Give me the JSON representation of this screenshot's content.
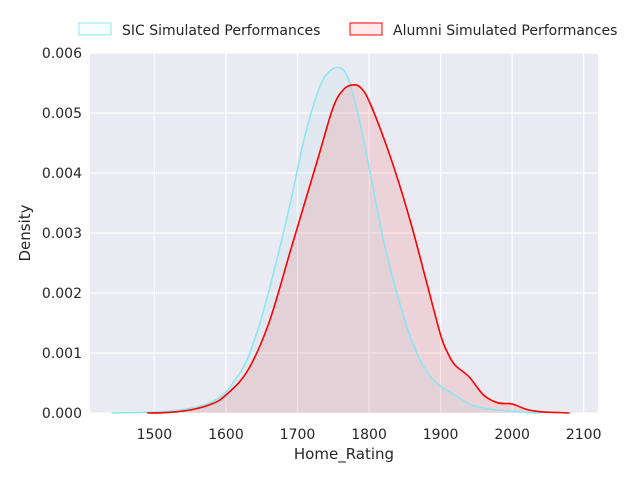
{
  "chart_data": {
    "type": "line",
    "xlabel": "Home_Rating",
    "ylabel": "Density",
    "xlim": [
      1410,
      2120
    ],
    "ylim": [
      0,
      0.006
    ],
    "x_ticks": [
      1500,
      1600,
      1700,
      1800,
      1900,
      2000,
      2100
    ],
    "x_tick_labels": [
      "1500",
      "1600",
      "1700",
      "1800",
      "1900",
      "2000",
      "2100"
    ],
    "y_ticks": [
      0,
      0.001,
      0.002,
      0.003,
      0.004,
      0.005,
      0.006
    ],
    "y_tick_labels": [
      "0.000",
      "0.001",
      "0.002",
      "0.003",
      "0.004",
      "0.005",
      "0.006"
    ],
    "grid": true,
    "legend_position": "top",
    "series": [
      {
        "name": "SIC Simulated Performances",
        "color": "#8ee6f0",
        "x": [
          1440,
          1480,
          1520,
          1560,
          1590,
          1610,
          1630,
          1650,
          1670,
          1690,
          1710,
          1730,
          1745,
          1760,
          1770,
          1780,
          1790,
          1800,
          1820,
          1840,
          1860,
          1880,
          1900,
          1920,
          1940,
          1960,
          1980,
          2000,
          2020,
          2040
        ],
        "y": [
          0.0,
          1e-05,
          3e-05,
          0.0001,
          0.00025,
          0.0005,
          0.0009,
          0.0016,
          0.0025,
          0.0035,
          0.0046,
          0.0054,
          0.0057,
          0.00575,
          0.0056,
          0.0052,
          0.0047,
          0.0041,
          0.0029,
          0.00195,
          0.0012,
          0.0007,
          0.00045,
          0.0003,
          0.00015,
          8e-05,
          5e-05,
          3e-05,
          1e-05,
          0.0
        ]
      },
      {
        "name": "Alumni Simulated Performances",
        "color": "#ff0000",
        "x": [
          1490,
          1520,
          1550,
          1580,
          1600,
          1630,
          1660,
          1690,
          1710,
          1730,
          1750,
          1765,
          1780,
          1790,
          1800,
          1820,
          1840,
          1860,
          1880,
          1900,
          1910,
          1920,
          1940,
          1960,
          1980,
          2000,
          2020,
          2040,
          2060,
          2080
        ],
        "y": [
          0.0,
          1e-05,
          5e-05,
          0.00015,
          0.0003,
          0.0007,
          0.0015,
          0.0027,
          0.0035,
          0.0043,
          0.0051,
          0.0054,
          0.00547,
          0.0054,
          0.0052,
          0.0046,
          0.0039,
          0.0031,
          0.0022,
          0.0013,
          0.001,
          0.0008,
          0.0006,
          0.0003,
          0.00017,
          0.00015,
          6e-05,
          2e-05,
          1e-05,
          0.0
        ]
      }
    ]
  }
}
